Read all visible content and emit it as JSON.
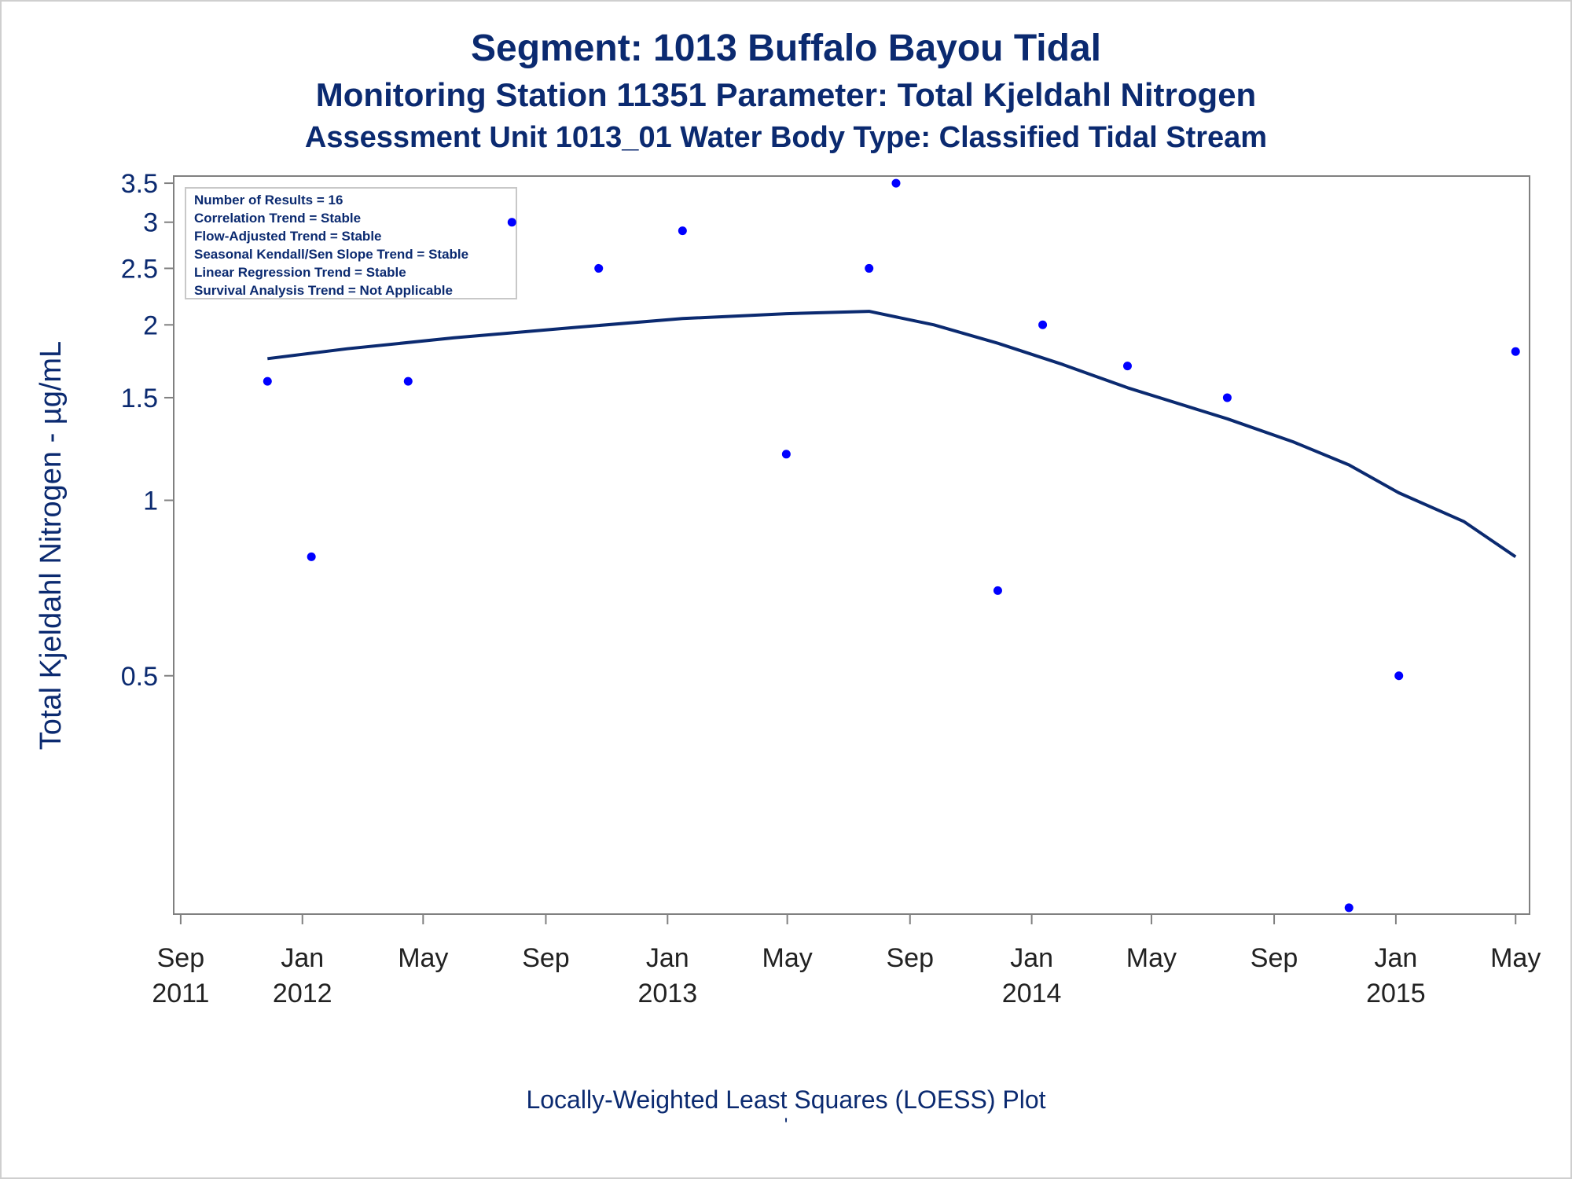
{
  "titles": {
    "line1": "Segment: 1013  Buffalo Bayou Tidal",
    "line2": "Monitoring Station 11351 Parameter: Total Kjeldahl Nitrogen",
    "line3": "Assessment Unit 1013_01   Water Body Type: Classified Tidal Stream"
  },
  "footer": {
    "caption": "Locally-Weighted Least Squares (LOESS) Plot",
    "mark": "'"
  },
  "stats_box": [
    "Number of Results = 16",
    "Correlation Trend = Stable",
    "Flow-Adjusted Trend = Stable",
    "Seasonal Kendall/Sen Slope Trend = Stable",
    "Linear Regression Trend = Stable",
    "Survival Analysis Trend = Not Applicable"
  ],
  "colors": {
    "text": "#0b2a70",
    "points": "#0000ff",
    "loess": "#0b2a70",
    "axis": "#808080"
  },
  "chart_data": {
    "type": "scatter",
    "ylabel": "Total Kjeldahl Nitrogen -  µg/mL",
    "yscale": "log",
    "ylim": [
      0.195,
      3.6
    ],
    "yticks": [
      0.5,
      1,
      1.5,
      2,
      2.5,
      3,
      3.5
    ],
    "ytick_labels": [
      "0.5",
      "1",
      "1.5",
      "2",
      "2.5",
      "3",
      "3.5"
    ],
    "xlim": [
      "2011-08-25",
      "2015-05-15"
    ],
    "xticks": [
      {
        "date": "2011-09-01",
        "month": "Sep",
        "year": "2011"
      },
      {
        "date": "2012-01-01",
        "month": "Jan",
        "year": "2012"
      },
      {
        "date": "2012-05-01",
        "month": "May",
        "year": ""
      },
      {
        "date": "2012-09-01",
        "month": "Sep",
        "year": ""
      },
      {
        "date": "2013-01-01",
        "month": "Jan",
        "year": "2013"
      },
      {
        "date": "2013-05-01",
        "month": "May",
        "year": ""
      },
      {
        "date": "2013-09-01",
        "month": "Sep",
        "year": ""
      },
      {
        "date": "2014-01-01",
        "month": "Jan",
        "year": "2014"
      },
      {
        "date": "2014-05-01",
        "month": "May",
        "year": ""
      },
      {
        "date": "2014-09-01",
        "month": "Sep",
        "year": ""
      },
      {
        "date": "2015-01-01",
        "month": "Jan",
        "year": "2015"
      },
      {
        "date": "2015-05-01",
        "month": "May",
        "year": ""
      }
    ],
    "points": [
      {
        "x": "2011-11-27",
        "y": 1.6
      },
      {
        "x": "2012-01-10",
        "y": 0.8
      },
      {
        "x": "2012-04-16",
        "y": 1.6
      },
      {
        "x": "2012-07-29",
        "y": 3.0
      },
      {
        "x": "2012-10-24",
        "y": 2.5
      },
      {
        "x": "2013-01-16",
        "y": 2.9
      },
      {
        "x": "2013-04-30",
        "y": 1.2
      },
      {
        "x": "2013-07-22",
        "y": 2.5
      },
      {
        "x": "2013-08-18",
        "y": 3.5
      },
      {
        "x": "2013-11-28",
        "y": 0.7
      },
      {
        "x": "2014-01-12",
        "y": 2.0
      },
      {
        "x": "2014-04-07",
        "y": 1.7
      },
      {
        "x": "2014-07-16",
        "y": 1.5
      },
      {
        "x": "2014-11-15",
        "y": 0.2
      },
      {
        "x": "2015-01-04",
        "y": 0.5
      },
      {
        "x": "2015-05-01",
        "y": 1.8
      }
    ],
    "loess": [
      {
        "x": "2011-11-27",
        "y": 1.75
      },
      {
        "x": "2012-02-15",
        "y": 1.82
      },
      {
        "x": "2012-06-01",
        "y": 1.9
      },
      {
        "x": "2012-10-01",
        "y": 1.98
      },
      {
        "x": "2013-01-16",
        "y": 2.05
      },
      {
        "x": "2013-04-30",
        "y": 2.09
      },
      {
        "x": "2013-07-22",
        "y": 2.11
      },
      {
        "x": "2013-09-25",
        "y": 2.0
      },
      {
        "x": "2013-11-28",
        "y": 1.86
      },
      {
        "x": "2014-02-01",
        "y": 1.71
      },
      {
        "x": "2014-04-07",
        "y": 1.56
      },
      {
        "x": "2014-07-16",
        "y": 1.38
      },
      {
        "x": "2014-09-20",
        "y": 1.26
      },
      {
        "x": "2014-11-15",
        "y": 1.15
      },
      {
        "x": "2015-01-04",
        "y": 1.03
      },
      {
        "x": "2015-03-10",
        "y": 0.92
      },
      {
        "x": "2015-05-01",
        "y": 0.8
      }
    ]
  }
}
